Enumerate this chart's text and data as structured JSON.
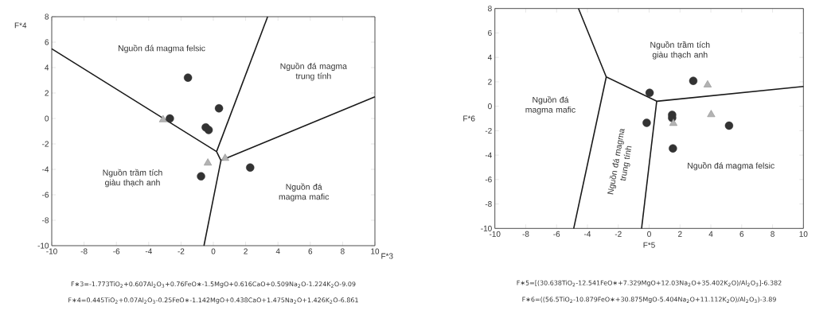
{
  "chart_data": [
    {
      "type": "scatter",
      "xlabel": "F*3",
      "ylabel": "F*4",
      "xlim": [
        -10,
        10
      ],
      "ylim": [
        -10,
        8
      ],
      "xticks": [
        -10,
        -8,
        -6,
        -4,
        -2,
        0,
        2,
        4,
        6,
        8,
        10
      ],
      "yticks": [
        -10,
        -8,
        -6,
        -4,
        -2,
        0,
        2,
        4,
        6,
        8
      ],
      "series": [
        {
          "type": "line",
          "color": "#1a1a1a",
          "marker": "none",
          "x": [
            -10,
            0.2,
            0.47,
            -0.58
          ],
          "values": [
            5.48,
            -2.6,
            -3.3,
            -10
          ]
        },
        {
          "type": "line",
          "color": "#1a1a1a",
          "marker": "none",
          "x": [
            3.36,
            0.2
          ],
          "values": [
            8,
            -2.6
          ]
        },
        {
          "type": "line",
          "color": "#1a1a1a",
          "marker": "none",
          "x": [
            10,
            0.47
          ],
          "values": [
            1.7,
            -3.3
          ]
        },
        {
          "color": "#333333",
          "marker": "circle",
          "x": [
            -1.57,
            -2.69,
            0.35,
            -0.47,
            -0.29,
            -0.76,
            2.28
          ],
          "values": [
            3.21,
            0.0,
            0.8,
            -0.7,
            -0.9,
            -4.55,
            -3.86
          ]
        },
        {
          "color": "#b3b3b3",
          "marker": "triangle",
          "x": [
            -3.11,
            -0.34,
            0.73
          ],
          "values": [
            -0.1,
            -3.5,
            -3.13
          ]
        }
      ],
      "annotations": [
        "Nguồn đá magma felsic",
        "Nguồn đá magma trung tính",
        "Nguồn trầm tích giàu thạch anh",
        "Nguồn đá magma mafic",
        "F∗3=-1.773TiO$_{2}$+0.607Al$_{2}$O$_{3}$+0.76FeO∗-1.5MgO+0.616CaO+0.509Na$_{2}$O-1.224K$_{2}$O-9.09",
        "F∗4=0.445TiO$_{2}$+0.07Al$_{2}$O$_{3}$-0.25FeO∗-1.142MgO+0.438CaO+1.475Na$_{2}$O+1.426K$_{2}$O-6.861"
      ]
    },
    {
      "type": "scatter",
      "xlabel": "F*5",
      "ylabel": "F*6",
      "xlim": [
        -10,
        10
      ],
      "ylim": [
        -10,
        8
      ],
      "xticks": [
        -10,
        -8,
        -6,
        -4,
        -2,
        0,
        2,
        4,
        6,
        8,
        10
      ],
      "yticks": [
        -10,
        -8,
        -6,
        -4,
        -2,
        0,
        2,
        4,
        6,
        8
      ],
      "series": [
        {
          "type": "line",
          "color": "#1a1a1a",
          "marker": "none",
          "x": [
            -4.58,
            -2.78,
            0.49,
            10
          ],
          "values": [
            8,
            2.4,
            0.41,
            1.62
          ]
        },
        {
          "type": "line",
          "color": "#1a1a1a",
          "marker": "none",
          "x": [
            -2.78,
            -4.89
          ],
          "values": [
            2.4,
            -10
          ]
        },
        {
          "type": "line",
          "color": "#1a1a1a",
          "marker": "none",
          "x": [
            0.49,
            -0.49
          ],
          "values": [
            0.41,
            -10
          ]
        },
        {
          "color": "#333333",
          "marker": "circle",
          "x": [
            2.86,
            0.03,
            -0.16,
            1.49,
            1.49,
            1.54,
            5.18
          ],
          "values": [
            2.08,
            1.1,
            -1.35,
            -0.7,
            -0.95,
            -3.45,
            -1.59
          ]
        },
        {
          "color": "#b3b3b3",
          "marker": "triangle",
          "x": [
            3.79,
            4.02,
            1.57
          ],
          "values": [
            1.75,
            -0.68,
            -1.4
          ]
        }
      ],
      "annotations": [
        "Nguồn trầm tích giàu thạch anh",
        "Nguồn đá magma mafic",
        "Nguồn đá magma trung tính",
        "Nguồn đá magma felsic",
        "F∗5=[(30.638TiO$_{2}$-12.541FeO∗+7.329MgO+12.03Na$_{2}$O+35.402K$_{2}$O)/Al$_{2}$O$_{3}$]-6.382",
        "F∗6=((56.5TiO$_{2}$-10.879FeO∗+30.875MgO-5.404Na$_{2}$O+11.112K$_{2}$O)/Al$_{2}$O$_{3}$)-3.89"
      ]
    }
  ]
}
